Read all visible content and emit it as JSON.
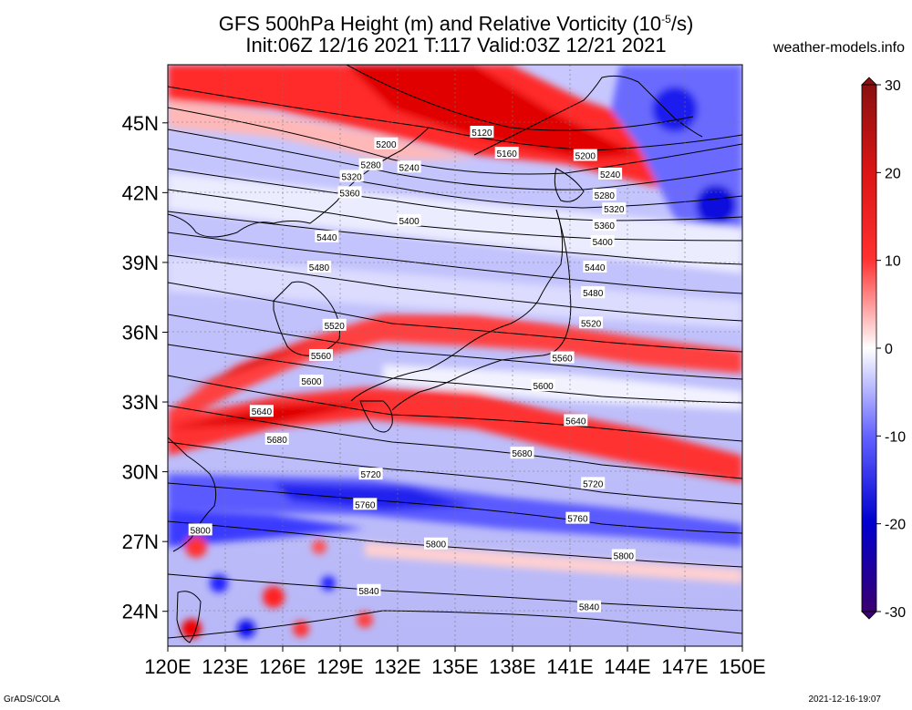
{
  "title": {
    "line1_pre": "GFS 500hPa Height (m) and Relative Vorticity (10",
    "line1_sup": "-5",
    "line1_post": "/s)",
    "line2": "Init:06Z 12/16 2021 T:117 Valid:03Z 12/21 2021"
  },
  "site": "weather-models.info",
  "footer": {
    "left": "GrADS/COLA",
    "right": "2021-12-16-19:07"
  },
  "map": {
    "lon_range": [
      120,
      150
    ],
    "lat_range": [
      22.5,
      47.5
    ],
    "lat_labels": [
      "45N",
      "42N",
      "39N",
      "36N",
      "33N",
      "30N",
      "27N",
      "24N"
    ],
    "lat_values": [
      45,
      42,
      39,
      36,
      33,
      30,
      27,
      24
    ],
    "lon_labels": [
      "120E",
      "123E",
      "126E",
      "129E",
      "132E",
      "135E",
      "138E",
      "141E",
      "144E",
      "147E",
      "150E"
    ],
    "lon_values": [
      120,
      123,
      126,
      129,
      132,
      135,
      138,
      141,
      144,
      147,
      150
    ]
  },
  "colorbar": {
    "labels": [
      "30",
      "20",
      "10",
      "0",
      "-10",
      "-20",
      "-30"
    ],
    "values": [
      30,
      20,
      10,
      0,
      -10,
      -20,
      -30
    ],
    "colors": [
      "#6b0000",
      "#c00000",
      "#ff2020",
      "#ffb0b0",
      "#ffffff",
      "#b0b0ff",
      "#2020ff",
      "#0000a0",
      "#3a0070"
    ]
  },
  "contour_labels": [
    {
      "text": "5120",
      "lon": 136.4,
      "lat": 44.6
    },
    {
      "text": "5160",
      "lon": 137.7,
      "lat": 43.7
    },
    {
      "text": "5200",
      "lon": 131.4,
      "lat": 44.1
    },
    {
      "text": "5200",
      "lon": 141.8,
      "lat": 43.6
    },
    {
      "text": "5240",
      "lon": 132.6,
      "lat": 43.1
    },
    {
      "text": "5240",
      "lon": 143.1,
      "lat": 42.8
    },
    {
      "text": "5280",
      "lon": 130.6,
      "lat": 43.2
    },
    {
      "text": "5280",
      "lon": 142.8,
      "lat": 41.9
    },
    {
      "text": "5320",
      "lon": 129.6,
      "lat": 42.7
    },
    {
      "text": "5320",
      "lon": 143.3,
      "lat": 41.3
    },
    {
      "text": "5360",
      "lon": 129.5,
      "lat": 42.0
    },
    {
      "text": "5360",
      "lon": 142.8,
      "lat": 40.6
    },
    {
      "text": "5400",
      "lon": 132.6,
      "lat": 40.8
    },
    {
      "text": "5400",
      "lon": 142.7,
      "lat": 39.9
    },
    {
      "text": "5440",
      "lon": 128.3,
      "lat": 40.1
    },
    {
      "text": "5440",
      "lon": 142.3,
      "lat": 38.8
    },
    {
      "text": "5480",
      "lon": 127.9,
      "lat": 38.8
    },
    {
      "text": "5480",
      "lon": 142.2,
      "lat": 37.7
    },
    {
      "text": "5520",
      "lon": 128.7,
      "lat": 36.3
    },
    {
      "text": "5520",
      "lon": 142.1,
      "lat": 36.4
    },
    {
      "text": "5560",
      "lon": 128.0,
      "lat": 35.0
    },
    {
      "text": "5560",
      "lon": 140.6,
      "lat": 34.9
    },
    {
      "text": "5600",
      "lon": 127.5,
      "lat": 33.9
    },
    {
      "text": "5600",
      "lon": 139.6,
      "lat": 33.7
    },
    {
      "text": "5640",
      "lon": 124.9,
      "lat": 32.6
    },
    {
      "text": "5640",
      "lon": 141.3,
      "lat": 32.2
    },
    {
      "text": "5680",
      "lon": 125.7,
      "lat": 31.4
    },
    {
      "text": "5680",
      "lon": 138.5,
      "lat": 30.8
    },
    {
      "text": "5720",
      "lon": 130.6,
      "lat": 29.9
    },
    {
      "text": "5720",
      "lon": 142.2,
      "lat": 29.5
    },
    {
      "text": "5760",
      "lon": 130.3,
      "lat": 28.6
    },
    {
      "text": "5760",
      "lon": 141.4,
      "lat": 28.0
    },
    {
      "text": "5800",
      "lon": 121.7,
      "lat": 27.5
    },
    {
      "text": "5800",
      "lon": 134.0,
      "lat": 26.9
    },
    {
      "text": "5800",
      "lon": 143.8,
      "lat": 26.4
    },
    {
      "text": "5840",
      "lon": 130.5,
      "lat": 24.9
    },
    {
      "text": "5840",
      "lon": 142.0,
      "lat": 24.2
    }
  ]
}
